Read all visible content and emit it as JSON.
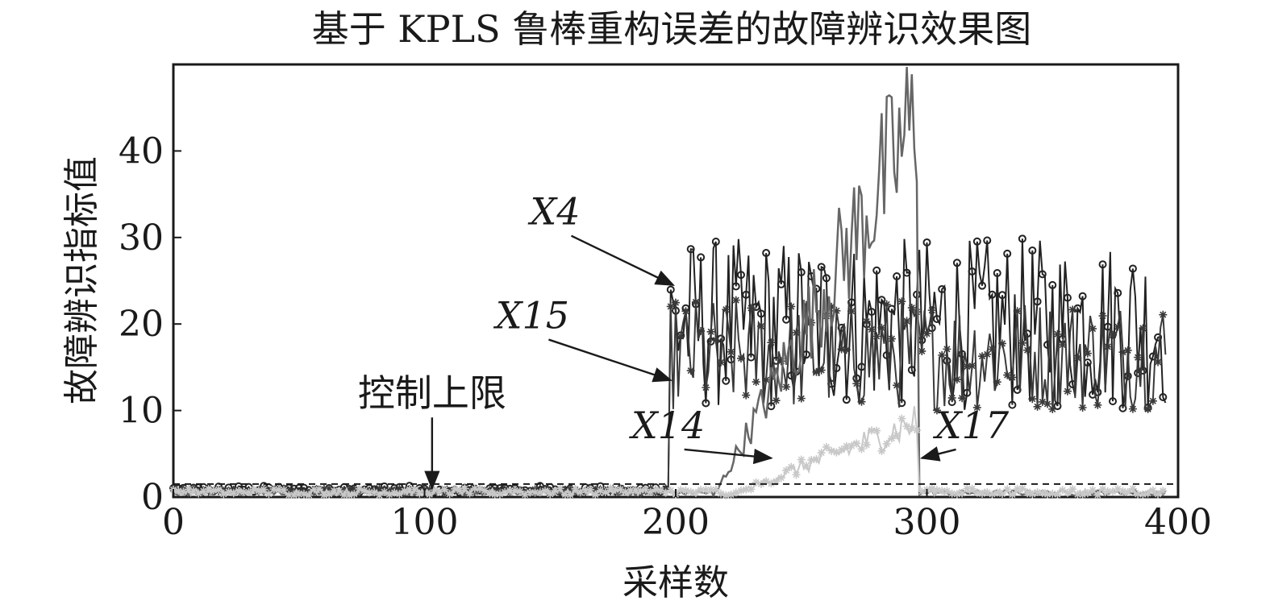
{
  "chart_data": {
    "type": "line",
    "title": "基于 KPLS 鲁棒重构误差的故障辨识效果图",
    "xlabel": "采样数",
    "ylabel": "故障辨识指标值",
    "xlim": [
      0,
      400
    ],
    "ylim": [
      0,
      50
    ],
    "xticks": [
      0,
      100,
      200,
      300,
      400
    ],
    "yticks": [
      0,
      10,
      20,
      30,
      40
    ],
    "grid": false,
    "legend": "none",
    "control_limit": 1.5,
    "annotations": [
      {
        "text": "X4",
        "italic": true,
        "tx": 152,
        "ty": 31.5,
        "ax": 199,
        "ay": 24.5
      },
      {
        "text": "X15",
        "italic": true,
        "tx": 143,
        "ty": 19.5,
        "ax": 198,
        "ay": 13.5
      },
      {
        "text": "X14",
        "italic": true,
        "tx": 197,
        "ty": 6.8,
        "ax": 238,
        "ay": 4.5
      },
      {
        "text": "X17",
        "italic": true,
        "tx": 318,
        "ty": 6.8,
        "ax": 298,
        "ay": 4.5
      },
      {
        "text": "控制上限",
        "italic": false,
        "tx": 103,
        "ty": 10.5,
        "ax": 103,
        "ay": 1.0
      }
    ],
    "series": [
      {
        "color": "#222222",
        "marker": "circle",
        "base": 0.9,
        "jitter": 0.4,
        "fault_start": 198,
        "fault_end": 400,
        "fault_low": 10,
        "fault_high": 30
      },
      {
        "color": "#3a3a3a",
        "marker": "star",
        "base": 0.7,
        "jitter": 0.3,
        "fault_start": 198,
        "fault_end": 400,
        "fault_low": 10,
        "fault_high": 23
      },
      {
        "color": "#666666",
        "marker": "none",
        "base": 0.5,
        "jitter": 0.3,
        "ramp_start": 215,
        "ramp_end": 296,
        "ramp_peak": 50
      },
      {
        "color": "#c8c8c8",
        "marker": "star",
        "base": 0.6,
        "jitter": 0.4,
        "ramp_start": 220,
        "ramp_end": 296,
        "ramp_peak": 10
      }
    ]
  }
}
